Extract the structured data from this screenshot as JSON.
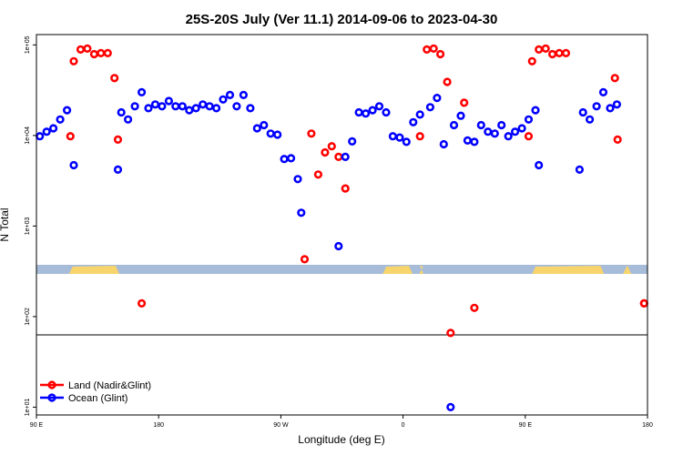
{
  "chart_data": {
    "type": "scatter",
    "title": "25S-20S July (Ver 11.1)   2014-09-06 to 2023-04-30",
    "xlabel": "Longitude (deg E)",
    "ylabel": "N Total",
    "y_scale": "log",
    "xlim": [
      90,
      540
    ],
    "ylim": [
      8.2,
      130000
    ],
    "x_ticks": [
      {
        "value": 90,
        "label": "90 E"
      },
      {
        "value": 180,
        "label": "180"
      },
      {
        "value": 270,
        "label": "90 W"
      },
      {
        "value": 360,
        "label": "0"
      },
      {
        "value": 450,
        "label": "90 E"
      },
      {
        "value": 540,
        "label": "180"
      }
    ],
    "y_ticks": [
      {
        "value": 10,
        "label": "1e+01"
      },
      {
        "value": 100,
        "label": "1e+02"
      },
      {
        "value": 1000,
        "label": "1e+03"
      },
      {
        "value": 10000,
        "label": "1e+04"
      },
      {
        "value": 100000,
        "label": "1e+05"
      }
    ],
    "reference_line": 150,
    "land_mask": {
      "ocean_color": "#a7bcd9",
      "land_color": "#f8d46c",
      "land_ranges": [
        [
          114,
          151
        ],
        [
          345,
          367
        ],
        [
          372,
          375
        ],
        [
          455,
          508
        ],
        [
          522,
          528
        ]
      ]
    },
    "legend": {
      "position": "bottom-left",
      "entries": [
        {
          "label": "Land (Nadir&Glint)",
          "color": "#ff0000"
        },
        {
          "label": "Ocean (Glint)",
          "color": "#0000ff"
        }
      ]
    },
    "series": [
      {
        "name": "Land (Nadir&Glint)",
        "color": "#ff0000",
        "points": [
          [
            115,
            9800
          ],
          [
            117.5,
            66000
          ],
          [
            122.5,
            89000
          ],
          [
            127.5,
            91000
          ],
          [
            132.5,
            79000
          ],
          [
            137.5,
            81000
          ],
          [
            142.5,
            81000
          ],
          [
            147.5,
            43000
          ],
          [
            150,
            9000
          ],
          [
            167.5,
            140
          ],
          [
            287.5,
            430
          ],
          [
            292.5,
            10500
          ],
          [
            297.5,
            3700
          ],
          [
            302.5,
            6500
          ],
          [
            307.5,
            7600
          ],
          [
            312.5,
            5800
          ],
          [
            317.5,
            2600
          ],
          [
            372.5,
            9800
          ],
          [
            377.5,
            89000
          ],
          [
            382.5,
            91000
          ],
          [
            387.5,
            79000
          ],
          [
            392.5,
            39000
          ],
          [
            395,
            66
          ],
          [
            405,
            23000
          ],
          [
            412.5,
            125
          ],
          [
            537.5,
            140
          ],
          [
            537.5,
            140
          ],
          [
            516,
            43000
          ],
          [
            518,
            9000
          ],
          [
            475,
            81000
          ],
          [
            480,
            81000
          ],
          [
            470,
            79000
          ],
          [
            465,
            91000
          ],
          [
            460,
            89000
          ],
          [
            455,
            66000
          ],
          [
            452.5,
            9800
          ]
        ]
      },
      {
        "name": "Ocean (Glint)",
        "color": "#0000ff",
        "points": [
          [
            92.5,
            9800
          ],
          [
            97.5,
            11000
          ],
          [
            102.5,
            12000
          ],
          [
            107.5,
            15000
          ],
          [
            112.5,
            19000
          ],
          [
            117.5,
            4700
          ],
          [
            150,
            4200
          ],
          [
            152.5,
            18000
          ],
          [
            157.5,
            15000
          ],
          [
            162.5,
            21000
          ],
          [
            167.5,
            30000
          ],
          [
            172.5,
            20000
          ],
          [
            177.5,
            22000
          ],
          [
            182.5,
            21000
          ],
          [
            187.5,
            24000
          ],
          [
            192.5,
            21000
          ],
          [
            197.5,
            21000
          ],
          [
            202.5,
            19000
          ],
          [
            207.5,
            20000
          ],
          [
            212.5,
            22000
          ],
          [
            217.5,
            21000
          ],
          [
            222.5,
            20000
          ],
          [
            227.5,
            25000
          ],
          [
            232.5,
            28000
          ],
          [
            237.5,
            21000
          ],
          [
            242.5,
            28000
          ],
          [
            247.5,
            20000
          ],
          [
            252.5,
            12000
          ],
          [
            257.5,
            13000
          ],
          [
            262.5,
            10500
          ],
          [
            267.5,
            10200
          ],
          [
            272.5,
            5500
          ],
          [
            277.5,
            5600
          ],
          [
            282.5,
            3300
          ],
          [
            285,
            1400
          ],
          [
            312.5,
            600
          ],
          [
            317.5,
            5800
          ],
          [
            322.5,
            8600
          ],
          [
            327.5,
            18000
          ],
          [
            332.5,
            17500
          ],
          [
            337.5,
            19000
          ],
          [
            342.5,
            21000
          ],
          [
            347.5,
            18000
          ],
          [
            352.5,
            9800
          ],
          [
            357.5,
            9500
          ],
          [
            362.5,
            8500
          ],
          [
            367.5,
            14000
          ],
          [
            372.5,
            17000
          ],
          [
            380,
            20500
          ],
          [
            385,
            26000
          ],
          [
            390,
            8000
          ],
          [
            395,
            10
          ],
          [
            397.5,
            13000
          ],
          [
            402.5,
            16500
          ],
          [
            407.5,
            8800
          ],
          [
            412.5,
            8500
          ],
          [
            417.5,
            13000
          ],
          [
            422.5,
            11000
          ],
          [
            427.5,
            10500
          ],
          [
            432.5,
            13000
          ],
          [
            437.5,
            9800
          ],
          [
            442.5,
            11000
          ],
          [
            447.5,
            12000
          ],
          [
            452.5,
            15000
          ],
          [
            457.5,
            19000
          ],
          [
            460,
            4700
          ],
          [
            490,
            4200
          ],
          [
            492.5,
            18000
          ],
          [
            497.5,
            15000
          ],
          [
            502.5,
            21000
          ],
          [
            507.5,
            30000
          ],
          [
            512.5,
            20000
          ],
          [
            517.5,
            22000
          ]
        ]
      }
    ]
  }
}
